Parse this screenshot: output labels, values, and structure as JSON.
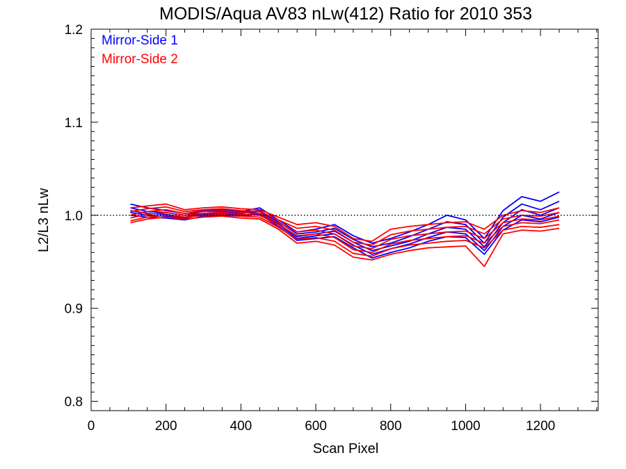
{
  "chart_data": {
    "type": "line",
    "title": "MODIS/Aqua AV83 nLw(412) Ratio for 2010 353",
    "xlabel": "Scan Pixel",
    "ylabel": "L2/L3 nLw",
    "xlim": [
      0,
      1354
    ],
    "ylim": [
      0.79,
      1.2
    ],
    "xticks": [
      0,
      200,
      400,
      600,
      800,
      1000,
      1200
    ],
    "yticks": [
      0.8,
      0.9,
      1.0,
      1.1,
      1.2
    ],
    "xtick_labels": [
      "0",
      "200",
      "400",
      "600",
      "800",
      "1000",
      "1200"
    ],
    "ytick_labels": [
      "0.8",
      "0.9",
      "1.0",
      "1.1",
      "1.2"
    ],
    "reference_line": 1.0,
    "legend_position": "top-left",
    "grid": false,
    "x": [
      105,
      150,
      200,
      250,
      300,
      350,
      400,
      450,
      500,
      550,
      600,
      650,
      700,
      750,
      800,
      850,
      900,
      950,
      1000,
      1050,
      1100,
      1150,
      1200,
      1250
    ],
    "series": [
      {
        "name": "Mirror-Side 1",
        "color": "#0000ff",
        "lines": [
          [
            1.012,
            1.008,
            1.005,
            1.002,
            1.005,
            1.006,
            1.004,
            1.008,
            0.995,
            0.982,
            0.985,
            0.99,
            0.978,
            0.97,
            0.975,
            0.982,
            0.99,
            1.0,
            0.995,
            0.975,
            1.005,
            1.02,
            1.015,
            1.025
          ],
          [
            1.008,
            1.004,
            1.003,
            1.0,
            1.004,
            1.004,
            1.003,
            1.005,
            0.993,
            0.98,
            0.982,
            0.986,
            0.974,
            0.966,
            0.97,
            0.977,
            0.985,
            0.993,
            0.99,
            0.97,
            0.998,
            1.012,
            1.006,
            1.015
          ],
          [
            1.005,
            1.002,
            1.001,
            0.998,
            1.002,
            1.003,
            1.002,
            1.004,
            0.991,
            0.977,
            0.98,
            0.983,
            0.971,
            0.962,
            0.967,
            0.972,
            0.98,
            0.987,
            0.985,
            0.966,
            0.992,
            1.006,
            1.0,
            1.008
          ],
          [
            1.003,
            1.0,
            0.999,
            0.997,
            1.001,
            1.002,
            1.0,
            1.002,
            0.99,
            0.975,
            0.978,
            0.98,
            0.968,
            0.958,
            0.964,
            0.969,
            0.976,
            0.982,
            0.98,
            0.962,
            0.988,
            1.0,
            0.996,
            1.003
          ],
          [
            1.0,
            0.998,
            0.997,
            0.995,
            0.999,
            1.0,
            0.999,
            1.001,
            0.988,
            0.973,
            0.975,
            0.977,
            0.965,
            0.954,
            0.96,
            0.965,
            0.972,
            0.977,
            0.976,
            0.958,
            0.984,
            0.995,
            0.993,
            0.998
          ]
        ]
      },
      {
        "name": "Mirror-Side 2",
        "color": "#ff0000",
        "lines": [
          [
            1.008,
            1.01,
            1.012,
            1.006,
            1.008,
            1.009,
            1.007,
            1.006,
            0.998,
            0.99,
            0.992,
            0.988,
            0.975,
            0.972,
            0.985,
            0.988,
            0.99,
            0.992,
            0.993,
            0.985,
            1.0,
            1.005,
            1.003,
            1.008
          ],
          [
            1.004,
            1.007,
            1.009,
            1.004,
            1.006,
            1.007,
            1.005,
            1.004,
            0.995,
            0.986,
            0.988,
            0.984,
            0.971,
            0.968,
            0.979,
            0.983,
            0.985,
            0.987,
            0.988,
            0.98,
            0.996,
            1.0,
            0.999,
            1.003
          ],
          [
            1.0,
            1.004,
            1.006,
            1.002,
            1.004,
            1.005,
            1.003,
            1.002,
            0.992,
            0.982,
            0.984,
            0.98,
            0.967,
            0.964,
            0.974,
            0.978,
            0.98,
            0.982,
            0.983,
            0.975,
            0.992,
            0.996,
            0.995,
            0.999
          ],
          [
            0.997,
            1.001,
            1.003,
            1.0,
            1.002,
            1.003,
            1.001,
            1.0,
            0.99,
            0.978,
            0.98,
            0.976,
            0.963,
            0.96,
            0.969,
            0.973,
            0.975,
            0.977,
            0.978,
            0.97,
            0.988,
            0.992,
            0.991,
            0.995
          ],
          [
            0.994,
            0.998,
            1.0,
            0.998,
            1.0,
            1.001,
            0.999,
            0.998,
            0.987,
            0.974,
            0.976,
            0.972,
            0.959,
            0.956,
            0.964,
            0.968,
            0.97,
            0.972,
            0.973,
            0.965,
            0.984,
            0.988,
            0.987,
            0.99
          ],
          [
            0.992,
            0.996,
            0.998,
            0.996,
            0.998,
            0.999,
            0.997,
            0.996,
            0.985,
            0.97,
            0.972,
            0.968,
            0.955,
            0.952,
            0.958,
            0.962,
            0.965,
            0.966,
            0.967,
            0.945,
            0.98,
            0.984,
            0.983,
            0.986
          ]
        ]
      }
    ]
  }
}
